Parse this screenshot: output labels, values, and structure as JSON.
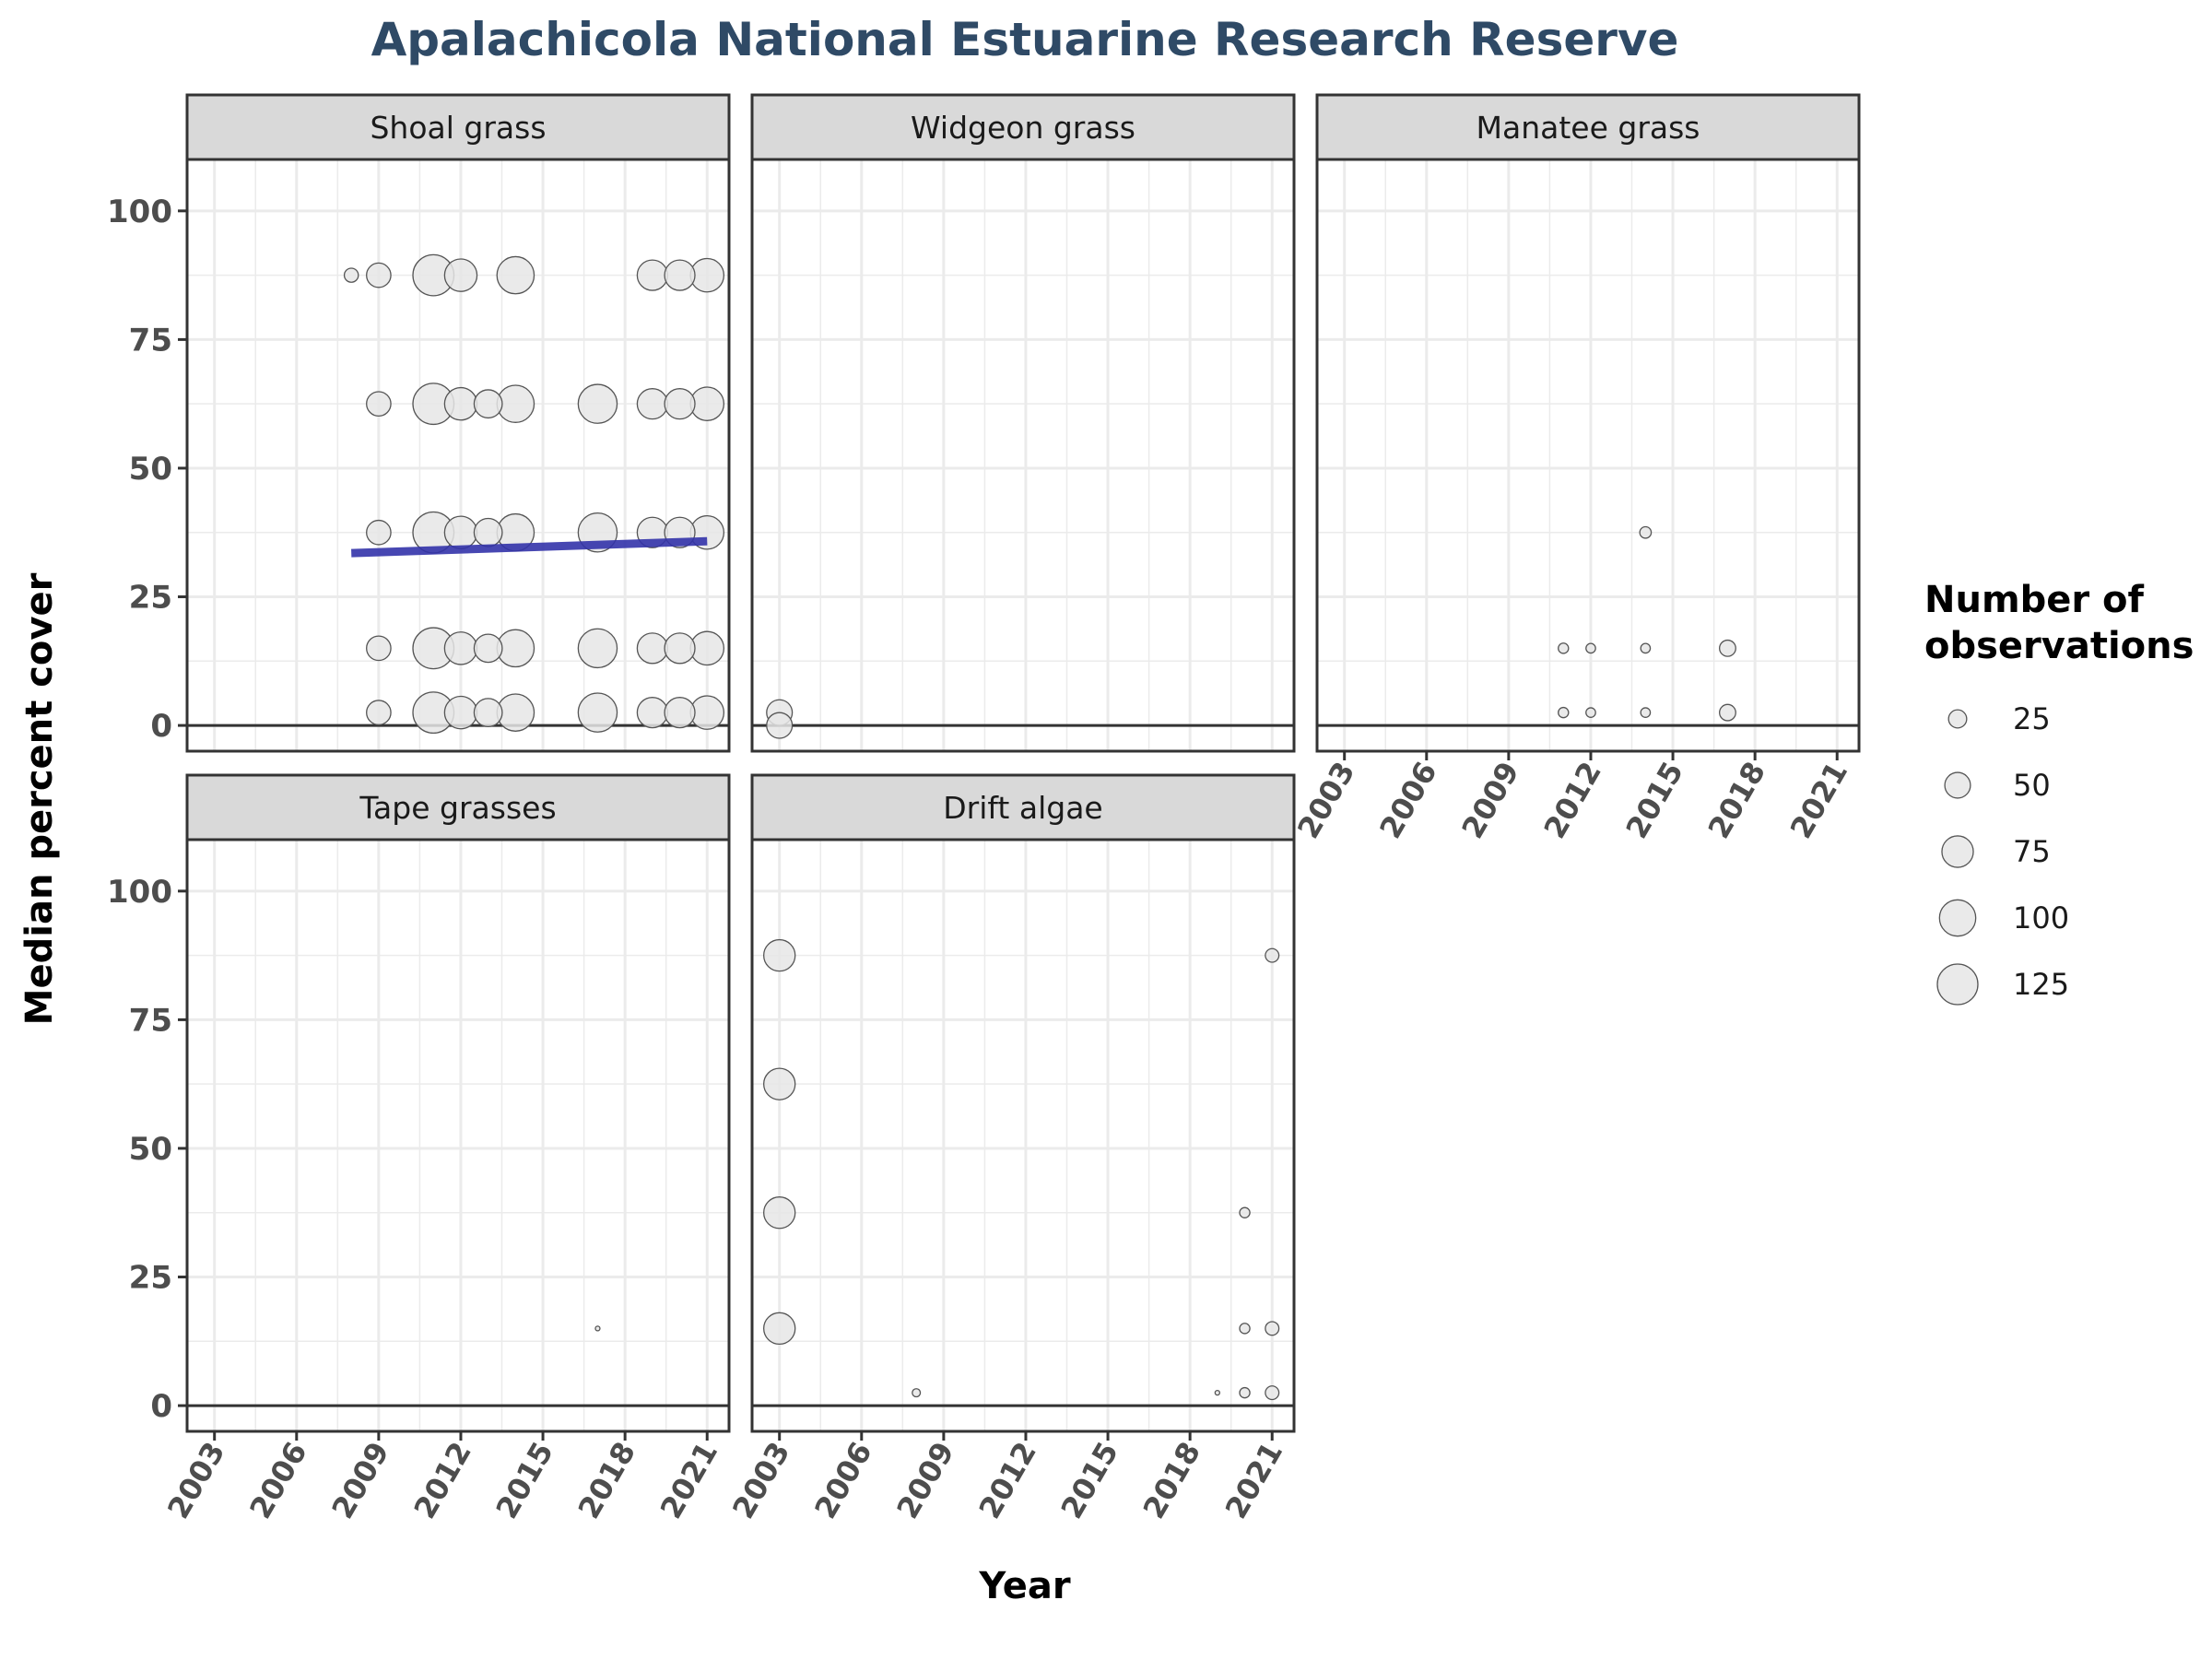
{
  "chart_data": {
    "type": "scatter",
    "title": "Apalachicola National Estuarine Research Reserve",
    "xlabel": "Year",
    "ylabel": "Median percent cover",
    "x_ticks": [
      2003,
      2006,
      2009,
      2012,
      2015,
      2018,
      2021
    ],
    "y_ticks": [
      0,
      25,
      50,
      75,
      100
    ],
    "xlim": [
      2002,
      2021.8
    ],
    "ylim": [
      -5,
      110
    ],
    "grid": true,
    "legend": {
      "title_lines": [
        "Number of",
        "observations"
      ],
      "placement": "right",
      "entries": [
        25,
        50,
        75,
        100,
        125
      ]
    },
    "colors": {
      "point_fill": "#e6e6e6",
      "point_stroke": "#555555",
      "trend_line": "#3333aa",
      "strip_fill": "#d9d9d9",
      "grid_line": "#ebebeb",
      "title": "#2f4a66"
    },
    "panels": [
      {
        "name": "Shoal grass",
        "points": [
          {
            "x": 2008,
            "y": 87.5,
            "n": 15
          },
          {
            "x": 2009,
            "y": 87.5,
            "n": 45
          },
          {
            "x": 2011,
            "y": 87.5,
            "n": 128
          },
          {
            "x": 2012,
            "y": 87.5,
            "n": 80
          },
          {
            "x": 2014,
            "y": 87.5,
            "n": 105
          },
          {
            "x": 2019,
            "y": 87.5,
            "n": 70
          },
          {
            "x": 2020,
            "y": 87.5,
            "n": 70
          },
          {
            "x": 2021,
            "y": 87.5,
            "n": 85
          },
          {
            "x": 2009,
            "y": 62.5,
            "n": 45
          },
          {
            "x": 2011,
            "y": 62.5,
            "n": 128
          },
          {
            "x": 2012,
            "y": 62.5,
            "n": 80
          },
          {
            "x": 2013,
            "y": 62.5,
            "n": 60
          },
          {
            "x": 2014,
            "y": 62.5,
            "n": 105
          },
          {
            "x": 2017,
            "y": 62.5,
            "n": 115
          },
          {
            "x": 2019,
            "y": 62.5,
            "n": 70
          },
          {
            "x": 2020,
            "y": 62.5,
            "n": 70
          },
          {
            "x": 2021,
            "y": 62.5,
            "n": 85
          },
          {
            "x": 2009,
            "y": 37.5,
            "n": 45
          },
          {
            "x": 2011,
            "y": 37.5,
            "n": 128
          },
          {
            "x": 2012,
            "y": 37.5,
            "n": 80
          },
          {
            "x": 2013,
            "y": 37.5,
            "n": 60
          },
          {
            "x": 2014,
            "y": 37.5,
            "n": 105
          },
          {
            "x": 2017,
            "y": 37.5,
            "n": 115
          },
          {
            "x": 2019,
            "y": 37.5,
            "n": 70
          },
          {
            "x": 2020,
            "y": 37.5,
            "n": 70
          },
          {
            "x": 2021,
            "y": 37.5,
            "n": 85
          },
          {
            "x": 2009,
            "y": 15,
            "n": 45
          },
          {
            "x": 2011,
            "y": 15,
            "n": 128
          },
          {
            "x": 2012,
            "y": 15,
            "n": 80
          },
          {
            "x": 2013,
            "y": 15,
            "n": 60
          },
          {
            "x": 2014,
            "y": 15,
            "n": 105
          },
          {
            "x": 2017,
            "y": 15,
            "n": 115
          },
          {
            "x": 2019,
            "y": 15,
            "n": 70
          },
          {
            "x": 2020,
            "y": 15,
            "n": 70
          },
          {
            "x": 2021,
            "y": 15,
            "n": 85
          },
          {
            "x": 2009,
            "y": 2.5,
            "n": 45
          },
          {
            "x": 2011,
            "y": 2.5,
            "n": 128
          },
          {
            "x": 2012,
            "y": 2.5,
            "n": 80
          },
          {
            "x": 2013,
            "y": 2.5,
            "n": 60
          },
          {
            "x": 2014,
            "y": 2.5,
            "n": 105
          },
          {
            "x": 2017,
            "y": 2.5,
            "n": 115
          },
          {
            "x": 2019,
            "y": 2.5,
            "n": 70
          },
          {
            "x": 2020,
            "y": 2.5,
            "n": 70
          },
          {
            "x": 2021,
            "y": 2.5,
            "n": 85
          }
        ],
        "trend": {
          "x": [
            2008,
            2021
          ],
          "y": [
            33.5,
            35.8
          ]
        }
      },
      {
        "name": "Widgeon grass",
        "points": [
          {
            "x": 2003,
            "y": 2.5,
            "n": 50
          },
          {
            "x": 2003,
            "y": 0,
            "n": 50
          }
        ]
      },
      {
        "name": "Manatee grass",
        "points": [
          {
            "x": 2014,
            "y": 37.5,
            "n": 10
          },
          {
            "x": 2011,
            "y": 15,
            "n": 8
          },
          {
            "x": 2012,
            "y": 15,
            "n": 7
          },
          {
            "x": 2014,
            "y": 15,
            "n": 7
          },
          {
            "x": 2017,
            "y": 15,
            "n": 20
          },
          {
            "x": 2011,
            "y": 2.5,
            "n": 8
          },
          {
            "x": 2012,
            "y": 2.5,
            "n": 7
          },
          {
            "x": 2014,
            "y": 2.5,
            "n": 7
          },
          {
            "x": 2017,
            "y": 2.5,
            "n": 20
          }
        ]
      },
      {
        "name": "Tape grasses",
        "points": [
          {
            "x": 2017,
            "y": 15,
            "n": 1
          }
        ]
      },
      {
        "name": "Drift algae",
        "points": [
          {
            "x": 2003,
            "y": 87.5,
            "n": 75
          },
          {
            "x": 2003,
            "y": 62.5,
            "n": 75
          },
          {
            "x": 2003,
            "y": 37.5,
            "n": 75
          },
          {
            "x": 2003,
            "y": 15,
            "n": 75
          },
          {
            "x": 2008,
            "y": 2.5,
            "n": 5
          },
          {
            "x": 2019,
            "y": 2.5,
            "n": 1
          },
          {
            "x": 2020,
            "y": 37.5,
            "n": 8
          },
          {
            "x": 2020,
            "y": 15,
            "n": 8
          },
          {
            "x": 2020,
            "y": 2.5,
            "n": 8
          },
          {
            "x": 2021,
            "y": 87.5,
            "n": 14
          },
          {
            "x": 2021,
            "y": 15,
            "n": 14
          },
          {
            "x": 2021,
            "y": 2.5,
            "n": 14
          }
        ]
      }
    ]
  }
}
